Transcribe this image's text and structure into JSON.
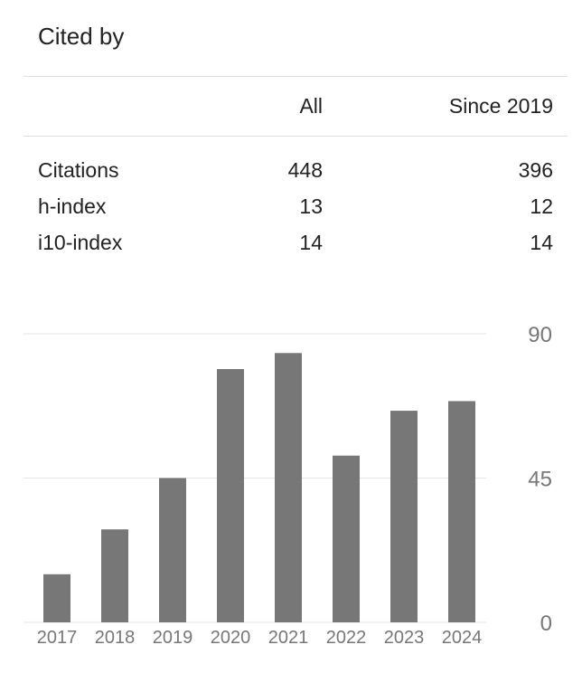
{
  "title": "Cited by",
  "table": {
    "headers": [
      "",
      "All",
      "Since 2019"
    ],
    "rows": [
      {
        "label": "Citations",
        "all": "448",
        "since": "396"
      },
      {
        "label": "h-index",
        "all": "13",
        "since": "12"
      },
      {
        "label": "i10-index",
        "all": "14",
        "since": "14"
      }
    ]
  },
  "chart_data": {
    "type": "bar",
    "categories": [
      "2017",
      "2018",
      "2019",
      "2020",
      "2021",
      "2022",
      "2023",
      "2024"
    ],
    "values": [
      15,
      29,
      45,
      79,
      84,
      52,
      66,
      69
    ],
    "yticks": [
      "0",
      "45",
      "90"
    ],
    "ylim": [
      0,
      90
    ],
    "grid": true,
    "y_axis_side": "right",
    "bar_color": "#777777"
  }
}
